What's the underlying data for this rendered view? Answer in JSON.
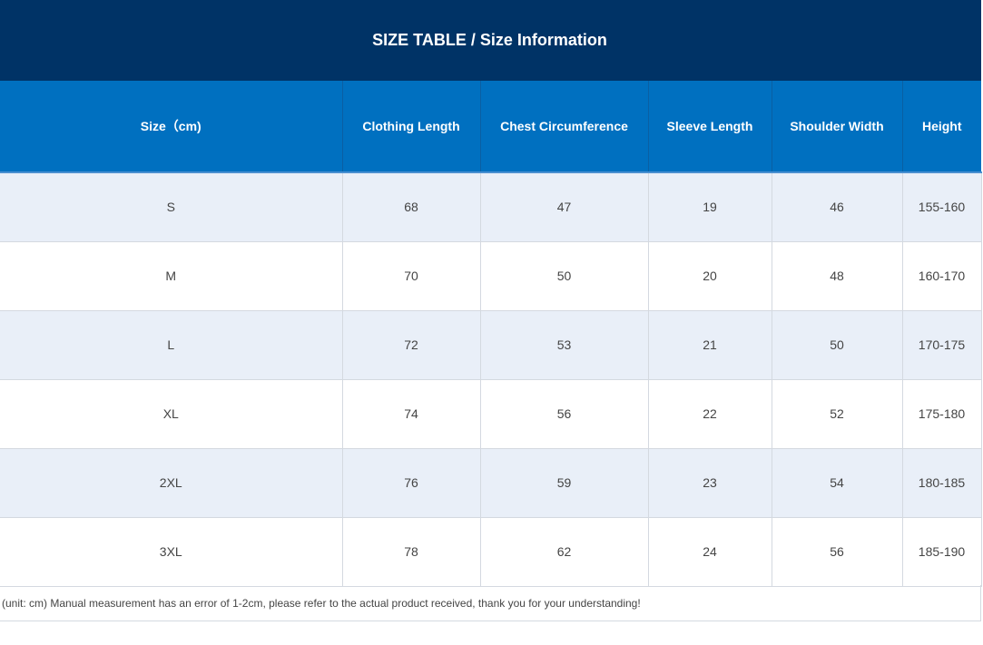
{
  "title": "SIZE TABLE / Size Information",
  "table": {
    "headers": [
      "Size（cm)",
      "Clothing Length",
      "Chest Circumference",
      "Sleeve Length",
      "Shoulder Width",
      "Height"
    ],
    "rows": [
      [
        "S",
        "68",
        "47",
        "19",
        "46",
        "155-160"
      ],
      [
        "M",
        "70",
        "50",
        "20",
        "48",
        "160-170"
      ],
      [
        "L",
        "72",
        "53",
        "21",
        "50",
        "170-175"
      ],
      [
        "XL",
        "74",
        "56",
        "22",
        "52",
        "175-180"
      ],
      [
        "2XL",
        "76",
        "59",
        "23",
        "54",
        "180-185"
      ],
      [
        "3XL",
        "78",
        "62",
        "24",
        "56",
        "185-190"
      ]
    ]
  },
  "note": "(unit: cm) Manual measurement has an error of 1-2cm, please refer to the actual product received, thank you for your understanding!",
  "colors": {
    "banner": "#003366",
    "header": "#0070c0",
    "stripe": "#e9eff8"
  }
}
